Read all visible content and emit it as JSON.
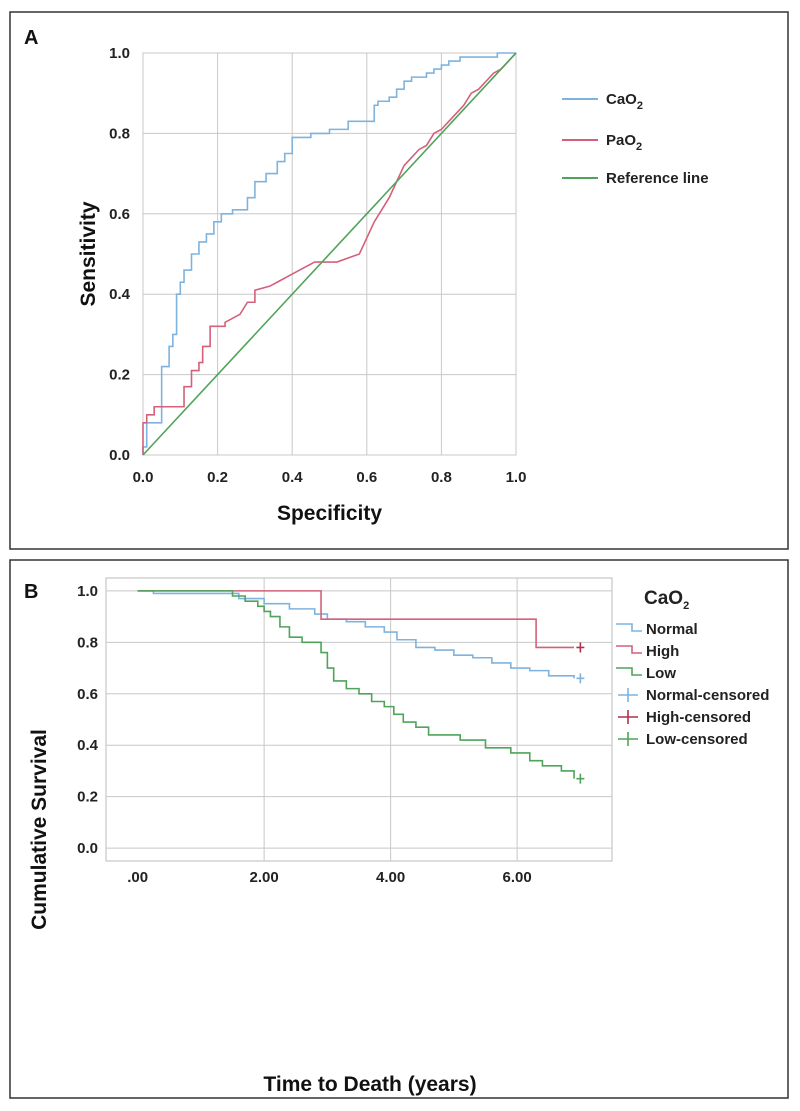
{
  "chart_data": [
    {
      "panel": "A",
      "type": "line",
      "xlabel": "Specificity",
      "ylabel": "Sensitivity",
      "xlim": [
        0,
        1
      ],
      "ylim": [
        0,
        1
      ],
      "xticks": [
        "0.0",
        "0.2",
        "0.4",
        "0.6",
        "0.8",
        "1.0"
      ],
      "yticks": [
        "0.0",
        "0.2",
        "0.4",
        "0.6",
        "0.8",
        "1.0"
      ],
      "grid": true,
      "legend_position": "right",
      "legend": [
        {
          "label": "CaO",
          "sub": "2"
        },
        {
          "label": "PaO",
          "sub": "2"
        },
        {
          "label": "Reference line",
          "sub": ""
        }
      ],
      "series": [
        {
          "name": "CaO2",
          "color": "#7fb3de",
          "x": [
            0.0,
            0.0,
            0.01,
            0.01,
            0.05,
            0.05,
            0.07,
            0.07,
            0.08,
            0.08,
            0.09,
            0.09,
            0.1,
            0.1,
            0.11,
            0.11,
            0.13,
            0.13,
            0.15,
            0.15,
            0.17,
            0.17,
            0.19,
            0.19,
            0.21,
            0.21,
            0.24,
            0.24,
            0.28,
            0.28,
            0.3,
            0.3,
            0.33,
            0.33,
            0.36,
            0.36,
            0.38,
            0.38,
            0.4,
            0.4,
            0.45,
            0.45,
            0.5,
            0.5,
            0.55,
            0.55,
            0.62,
            0.62,
            0.63,
            0.63,
            0.66,
            0.66,
            0.68,
            0.68,
            0.7,
            0.7,
            0.72,
            0.72,
            0.76,
            0.76,
            0.78,
            0.78,
            0.8,
            0.8,
            0.82,
            0.82,
            0.85,
            0.85,
            0.95,
            0.95,
            1.0
          ],
          "y": [
            0.0,
            0.02,
            0.02,
            0.08,
            0.08,
            0.22,
            0.22,
            0.27,
            0.27,
            0.3,
            0.3,
            0.4,
            0.4,
            0.43,
            0.43,
            0.46,
            0.46,
            0.5,
            0.5,
            0.53,
            0.53,
            0.55,
            0.55,
            0.58,
            0.58,
            0.6,
            0.6,
            0.61,
            0.61,
            0.64,
            0.64,
            0.68,
            0.68,
            0.7,
            0.7,
            0.73,
            0.73,
            0.75,
            0.75,
            0.79,
            0.79,
            0.8,
            0.8,
            0.81,
            0.81,
            0.83,
            0.83,
            0.87,
            0.87,
            0.88,
            0.88,
            0.89,
            0.89,
            0.91,
            0.91,
            0.93,
            0.93,
            0.94,
            0.94,
            0.95,
            0.95,
            0.96,
            0.96,
            0.97,
            0.97,
            0.98,
            0.98,
            0.99,
            0.99,
            1.0,
            1.0
          ]
        },
        {
          "name": "PaO2",
          "color": "#d4607a",
          "x": [
            0.0,
            0.0,
            0.01,
            0.01,
            0.03,
            0.03,
            0.08,
            0.08,
            0.11,
            0.11,
            0.13,
            0.13,
            0.15,
            0.15,
            0.16,
            0.16,
            0.18,
            0.18,
            0.22,
            0.22,
            0.26,
            0.28,
            0.3,
            0.3,
            0.34,
            0.36,
            0.4,
            0.42,
            0.44,
            0.46,
            0.5,
            0.52,
            0.55,
            0.58,
            0.6,
            0.62,
            0.64,
            0.66,
            0.68,
            0.7,
            0.72,
            0.74,
            0.76,
            0.78,
            0.8,
            0.82,
            0.84,
            0.86,
            0.88,
            0.9,
            0.92,
            0.94,
            0.96,
            0.98,
            1.0
          ],
          "y": [
            0.0,
            0.08,
            0.08,
            0.1,
            0.1,
            0.12,
            0.12,
            0.12,
            0.12,
            0.17,
            0.17,
            0.21,
            0.21,
            0.23,
            0.23,
            0.27,
            0.27,
            0.32,
            0.32,
            0.33,
            0.35,
            0.38,
            0.38,
            0.41,
            0.42,
            0.43,
            0.45,
            0.46,
            0.47,
            0.48,
            0.48,
            0.48,
            0.49,
            0.5,
            0.54,
            0.58,
            0.61,
            0.64,
            0.68,
            0.72,
            0.74,
            0.76,
            0.77,
            0.8,
            0.81,
            0.83,
            0.85,
            0.87,
            0.9,
            0.91,
            0.93,
            0.95,
            0.96,
            0.98,
            1.0
          ]
        },
        {
          "name": "Reference line",
          "color": "#4fa35a",
          "x": [
            0,
            1
          ],
          "y": [
            0,
            1
          ]
        }
      ]
    },
    {
      "panel": "B",
      "type": "line",
      "xlabel": "Time to Death (years)",
      "ylabel": "Cumulative Survival",
      "xlim": [
        -0.5,
        7.5
      ],
      "ylim": [
        -0.05,
        1.05
      ],
      "xticks": [
        ".00",
        "2.00",
        "4.00",
        "6.00"
      ],
      "yticks": [
        "0.0",
        "0.2",
        "0.4",
        "0.6",
        "0.8",
        "1.0"
      ],
      "grid": true,
      "legend_position": "right",
      "legend_title": {
        "label": "CaO",
        "sub": "2"
      },
      "legend": [
        "Normal",
        "High",
        "Low",
        "Normal-censored",
        "High-censored",
        "Low-censored"
      ],
      "series": [
        {
          "name": "Normal",
          "color": "#7fb3de",
          "x": [
            0.0,
            0.25,
            1.6,
            2.0,
            2.4,
            2.8,
            3.0,
            3.3,
            3.6,
            3.9,
            4.1,
            4.4,
            4.7,
            5.0,
            5.3,
            5.6,
            5.9,
            6.2,
            6.5,
            6.9
          ],
          "y": [
            1.0,
            0.99,
            0.97,
            0.95,
            0.93,
            0.91,
            0.89,
            0.88,
            0.86,
            0.84,
            0.81,
            0.78,
            0.77,
            0.75,
            0.74,
            0.72,
            0.7,
            0.69,
            0.67,
            0.66
          ]
        },
        {
          "name": "High",
          "color": "#d4607a",
          "x": [
            0.0,
            2.9,
            6.3,
            6.9
          ],
          "y": [
            1.0,
            0.89,
            0.78,
            0.78
          ]
        },
        {
          "name": "Low",
          "color": "#4fa35a",
          "x": [
            0.0,
            1.5,
            1.7,
            1.9,
            2.0,
            2.1,
            2.25,
            2.4,
            2.6,
            2.9,
            3.0,
            3.1,
            3.3,
            3.5,
            3.7,
            3.9,
            4.05,
            4.2,
            4.4,
            4.6,
            5.1,
            5.5,
            5.9,
            6.2,
            6.4,
            6.7,
            6.9
          ],
          "y": [
            1.0,
            0.98,
            0.96,
            0.94,
            0.92,
            0.9,
            0.86,
            0.82,
            0.8,
            0.76,
            0.7,
            0.65,
            0.62,
            0.6,
            0.57,
            0.55,
            0.52,
            0.49,
            0.47,
            0.44,
            0.42,
            0.39,
            0.37,
            0.34,
            0.32,
            0.3,
            0.27
          ]
        }
      ],
      "censored": [
        {
          "name": "Normal-censored",
          "color": "#7fb3de",
          "x": 7.0,
          "y": 0.66
        },
        {
          "name": "High-censored",
          "color": "#b0304f",
          "x": 7.0,
          "y": 0.78
        },
        {
          "name": "Low-censored",
          "color": "#4fa35a",
          "x": 7.0,
          "y": 0.27
        }
      ]
    }
  ]
}
